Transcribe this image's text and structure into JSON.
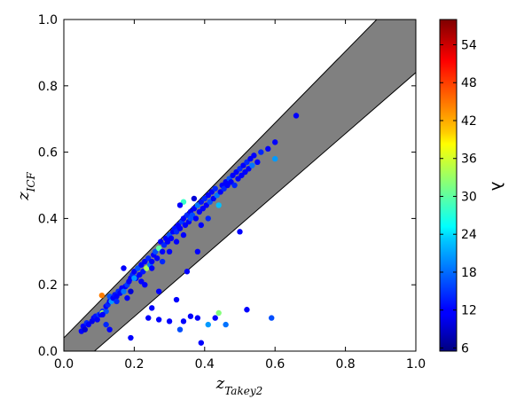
{
  "chart_data": {
    "type": "scatter",
    "title": "",
    "xlabel": {
      "main": "z",
      "sub": "Takey2"
    },
    "ylabel": {
      "main": "z",
      "sub": "ICF"
    },
    "xlim": [
      0,
      1
    ],
    "ylim": [
      0,
      1
    ],
    "xticks": [
      "0.0",
      "0.2",
      "0.4",
      "0.6",
      "0.8",
      "1.0"
    ],
    "yticks": [
      "0.0",
      "0.2",
      "0.4",
      "0.6",
      "0.8",
      "1.0"
    ],
    "band": {
      "color": "#808080",
      "lower_edge": "y = 0.92x - 0.08",
      "upper_edge": "y = 1.08x + 0.04"
    },
    "colorbar": {
      "label": "λ",
      "colormap": "jet",
      "range": [
        5.5,
        58
      ],
      "ticks": [
        6,
        12,
        18,
        24,
        30,
        36,
        42,
        48,
        54
      ]
    },
    "points": [
      {
        "x": 0.05,
        "y": 0.06,
        "c": 12
      },
      {
        "x": 0.055,
        "y": 0.075,
        "c": 12
      },
      {
        "x": 0.06,
        "y": 0.065,
        "c": 10
      },
      {
        "x": 0.065,
        "y": 0.085,
        "c": 14
      },
      {
        "x": 0.07,
        "y": 0.08,
        "c": 12
      },
      {
        "x": 0.08,
        "y": 0.09,
        "c": 11
      },
      {
        "x": 0.085,
        "y": 0.1,
        "c": 12
      },
      {
        "x": 0.09,
        "y": 0.105,
        "c": 13
      },
      {
        "x": 0.095,
        "y": 0.095,
        "c": 12
      },
      {
        "x": 0.1,
        "y": 0.11,
        "c": 15
      },
      {
        "x": 0.105,
        "y": 0.11,
        "c": 12
      },
      {
        "x": 0.11,
        "y": 0.12,
        "c": 14
      },
      {
        "x": 0.11,
        "y": 0.115,
        "c": 34
      },
      {
        "x": 0.108,
        "y": 0.168,
        "c": 45
      },
      {
        "x": 0.12,
        "y": 0.12,
        "c": 16
      },
      {
        "x": 0.12,
        "y": 0.135,
        "c": 12
      },
      {
        "x": 0.125,
        "y": 0.14,
        "c": 14
      },
      {
        "x": 0.13,
        "y": 0.15,
        "c": 12
      },
      {
        "x": 0.13,
        "y": 0.165,
        "c": 16
      },
      {
        "x": 0.135,
        "y": 0.15,
        "c": 20
      },
      {
        "x": 0.14,
        "y": 0.16,
        "c": 12
      },
      {
        "x": 0.145,
        "y": 0.17,
        "c": 13
      },
      {
        "x": 0.15,
        "y": 0.165,
        "c": 12
      },
      {
        "x": 0.155,
        "y": 0.18,
        "c": 14
      },
      {
        "x": 0.16,
        "y": 0.175,
        "c": 12
      },
      {
        "x": 0.165,
        "y": 0.19,
        "c": 12
      },
      {
        "x": 0.17,
        "y": 0.18,
        "c": 18
      },
      {
        "x": 0.175,
        "y": 0.195,
        "c": 12
      },
      {
        "x": 0.18,
        "y": 0.2,
        "c": 15
      },
      {
        "x": 0.185,
        "y": 0.21,
        "c": 12
      },
      {
        "x": 0.19,
        "y": 0.22,
        "c": 12
      },
      {
        "x": 0.195,
        "y": 0.23,
        "c": 14
      },
      {
        "x": 0.2,
        "y": 0.24,
        "c": 12
      },
      {
        "x": 0.205,
        "y": 0.22,
        "c": 12
      },
      {
        "x": 0.21,
        "y": 0.25,
        "c": 16
      },
      {
        "x": 0.215,
        "y": 0.23,
        "c": 12
      },
      {
        "x": 0.22,
        "y": 0.26,
        "c": 12
      },
      {
        "x": 0.225,
        "y": 0.24,
        "c": 13
      },
      {
        "x": 0.23,
        "y": 0.27,
        "c": 12
      },
      {
        "x": 0.235,
        "y": 0.25,
        "c": 34
      },
      {
        "x": 0.24,
        "y": 0.28,
        "c": 14
      },
      {
        "x": 0.245,
        "y": 0.26,
        "c": 18
      },
      {
        "x": 0.25,
        "y": 0.27,
        "c": 12
      },
      {
        "x": 0.255,
        "y": 0.29,
        "c": 12
      },
      {
        "x": 0.26,
        "y": 0.3,
        "c": 16
      },
      {
        "x": 0.265,
        "y": 0.28,
        "c": 12
      },
      {
        "x": 0.27,
        "y": 0.31,
        "c": 30
      },
      {
        "x": 0.275,
        "y": 0.33,
        "c": 12
      },
      {
        "x": 0.28,
        "y": 0.3,
        "c": 12
      },
      {
        "x": 0.285,
        "y": 0.32,
        "c": 14
      },
      {
        "x": 0.29,
        "y": 0.34,
        "c": 12
      },
      {
        "x": 0.295,
        "y": 0.33,
        "c": 12
      },
      {
        "x": 0.3,
        "y": 0.35,
        "c": 16
      },
      {
        "x": 0.305,
        "y": 0.34,
        "c": 12
      },
      {
        "x": 0.31,
        "y": 0.36,
        "c": 12
      },
      {
        "x": 0.315,
        "y": 0.37,
        "c": 13
      },
      {
        "x": 0.32,
        "y": 0.36,
        "c": 14
      },
      {
        "x": 0.325,
        "y": 0.38,
        "c": 12
      },
      {
        "x": 0.33,
        "y": 0.37,
        "c": 12
      },
      {
        "x": 0.335,
        "y": 0.39,
        "c": 15
      },
      {
        "x": 0.34,
        "y": 0.4,
        "c": 12
      },
      {
        "x": 0.345,
        "y": 0.38,
        "c": 12
      },
      {
        "x": 0.35,
        "y": 0.41,
        "c": 14
      },
      {
        "x": 0.355,
        "y": 0.39,
        "c": 12
      },
      {
        "x": 0.36,
        "y": 0.42,
        "c": 12
      },
      {
        "x": 0.365,
        "y": 0.41,
        "c": 16
      },
      {
        "x": 0.37,
        "y": 0.43,
        "c": 12
      },
      {
        "x": 0.375,
        "y": 0.4,
        "c": 12
      },
      {
        "x": 0.38,
        "y": 0.44,
        "c": 18
      },
      {
        "x": 0.385,
        "y": 0.42,
        "c": 12
      },
      {
        "x": 0.39,
        "y": 0.45,
        "c": 13
      },
      {
        "x": 0.395,
        "y": 0.43,
        "c": 12
      },
      {
        "x": 0.4,
        "y": 0.46,
        "c": 14
      },
      {
        "x": 0.405,
        "y": 0.44,
        "c": 12
      },
      {
        "x": 0.41,
        "y": 0.47,
        "c": 12
      },
      {
        "x": 0.415,
        "y": 0.45,
        "c": 16
      },
      {
        "x": 0.42,
        "y": 0.48,
        "c": 12
      },
      {
        "x": 0.425,
        "y": 0.46,
        "c": 12
      },
      {
        "x": 0.43,
        "y": 0.49,
        "c": 14
      },
      {
        "x": 0.435,
        "y": 0.47,
        "c": 18
      },
      {
        "x": 0.44,
        "y": 0.44,
        "c": 22
      },
      {
        "x": 0.445,
        "y": 0.48,
        "c": 12
      },
      {
        "x": 0.45,
        "y": 0.5,
        "c": 12
      },
      {
        "x": 0.455,
        "y": 0.49,
        "c": 14
      },
      {
        "x": 0.46,
        "y": 0.51,
        "c": 12
      },
      {
        "x": 0.465,
        "y": 0.5,
        "c": 12
      },
      {
        "x": 0.47,
        "y": 0.52,
        "c": 16
      },
      {
        "x": 0.475,
        "y": 0.51,
        "c": 12
      },
      {
        "x": 0.48,
        "y": 0.53,
        "c": 12
      },
      {
        "x": 0.485,
        "y": 0.5,
        "c": 14
      },
      {
        "x": 0.49,
        "y": 0.54,
        "c": 12
      },
      {
        "x": 0.495,
        "y": 0.52,
        "c": 12
      },
      {
        "x": 0.5,
        "y": 0.55,
        "c": 14
      },
      {
        "x": 0.505,
        "y": 0.53,
        "c": 12
      },
      {
        "x": 0.51,
        "y": 0.56,
        "c": 12
      },
      {
        "x": 0.515,
        "y": 0.54,
        "c": 12
      },
      {
        "x": 0.52,
        "y": 0.57,
        "c": 14
      },
      {
        "x": 0.525,
        "y": 0.55,
        "c": 12
      },
      {
        "x": 0.53,
        "y": 0.58,
        "c": 12
      },
      {
        "x": 0.535,
        "y": 0.56,
        "c": 18
      },
      {
        "x": 0.54,
        "y": 0.59,
        "c": 12
      },
      {
        "x": 0.55,
        "y": 0.57,
        "c": 12
      },
      {
        "x": 0.56,
        "y": 0.6,
        "c": 14
      },
      {
        "x": 0.58,
        "y": 0.61,
        "c": 12
      },
      {
        "x": 0.6,
        "y": 0.63,
        "c": 12
      },
      {
        "x": 0.6,
        "y": 0.58,
        "c": 20
      },
      {
        "x": 0.66,
        "y": 0.71,
        "c": 12
      },
      {
        "x": 0.34,
        "y": 0.45,
        "c": 28
      },
      {
        "x": 0.37,
        "y": 0.46,
        "c": 10
      },
      {
        "x": 0.33,
        "y": 0.44,
        "c": 12
      },
      {
        "x": 0.36,
        "y": 0.4,
        "c": 16
      },
      {
        "x": 0.39,
        "y": 0.38,
        "c": 12
      },
      {
        "x": 0.41,
        "y": 0.4,
        "c": 14
      },
      {
        "x": 0.17,
        "y": 0.25,
        "c": 12
      },
      {
        "x": 0.2,
        "y": 0.22,
        "c": 20
      },
      {
        "x": 0.23,
        "y": 0.2,
        "c": 12
      },
      {
        "x": 0.19,
        "y": 0.18,
        "c": 10
      },
      {
        "x": 0.15,
        "y": 0.15,
        "c": 14
      },
      {
        "x": 0.18,
        "y": 0.16,
        "c": 12
      },
      {
        "x": 0.22,
        "y": 0.21,
        "c": 12
      },
      {
        "x": 0.3,
        "y": 0.3,
        "c": 12
      },
      {
        "x": 0.28,
        "y": 0.27,
        "c": 14
      },
      {
        "x": 0.25,
        "y": 0.25,
        "c": 12
      },
      {
        "x": 0.32,
        "y": 0.33,
        "c": 12
      },
      {
        "x": 0.34,
        "y": 0.35,
        "c": 12
      },
      {
        "x": 0.5,
        "y": 0.36,
        "c": 12
      },
      {
        "x": 0.38,
        "y": 0.3,
        "c": 12
      },
      {
        "x": 0.35,
        "y": 0.24,
        "c": 12
      },
      {
        "x": 0.27,
        "y": 0.18,
        "c": 12
      },
      {
        "x": 0.11,
        "y": 0.11,
        "c": 12
      },
      {
        "x": 0.12,
        "y": 0.08,
        "c": 14
      },
      {
        "x": 0.13,
        "y": 0.065,
        "c": 12
      },
      {
        "x": 0.19,
        "y": 0.04,
        "c": 12
      },
      {
        "x": 0.24,
        "y": 0.1,
        "c": 12
      },
      {
        "x": 0.25,
        "y": 0.13,
        "c": 12
      },
      {
        "x": 0.27,
        "y": 0.095,
        "c": 12
      },
      {
        "x": 0.3,
        "y": 0.09,
        "c": 12
      },
      {
        "x": 0.32,
        "y": 0.155,
        "c": 12
      },
      {
        "x": 0.33,
        "y": 0.065,
        "c": 16
      },
      {
        "x": 0.34,
        "y": 0.09,
        "c": 12
      },
      {
        "x": 0.36,
        "y": 0.105,
        "c": 12
      },
      {
        "x": 0.38,
        "y": 0.1,
        "c": 12
      },
      {
        "x": 0.39,
        "y": 0.025,
        "c": 12
      },
      {
        "x": 0.41,
        "y": 0.08,
        "c": 20
      },
      {
        "x": 0.43,
        "y": 0.1,
        "c": 12
      },
      {
        "x": 0.44,
        "y": 0.115,
        "c": 32
      },
      {
        "x": 0.46,
        "y": 0.08,
        "c": 18
      },
      {
        "x": 0.52,
        "y": 0.125,
        "c": 12
      },
      {
        "x": 0.59,
        "y": 0.1,
        "c": 16
      }
    ]
  }
}
